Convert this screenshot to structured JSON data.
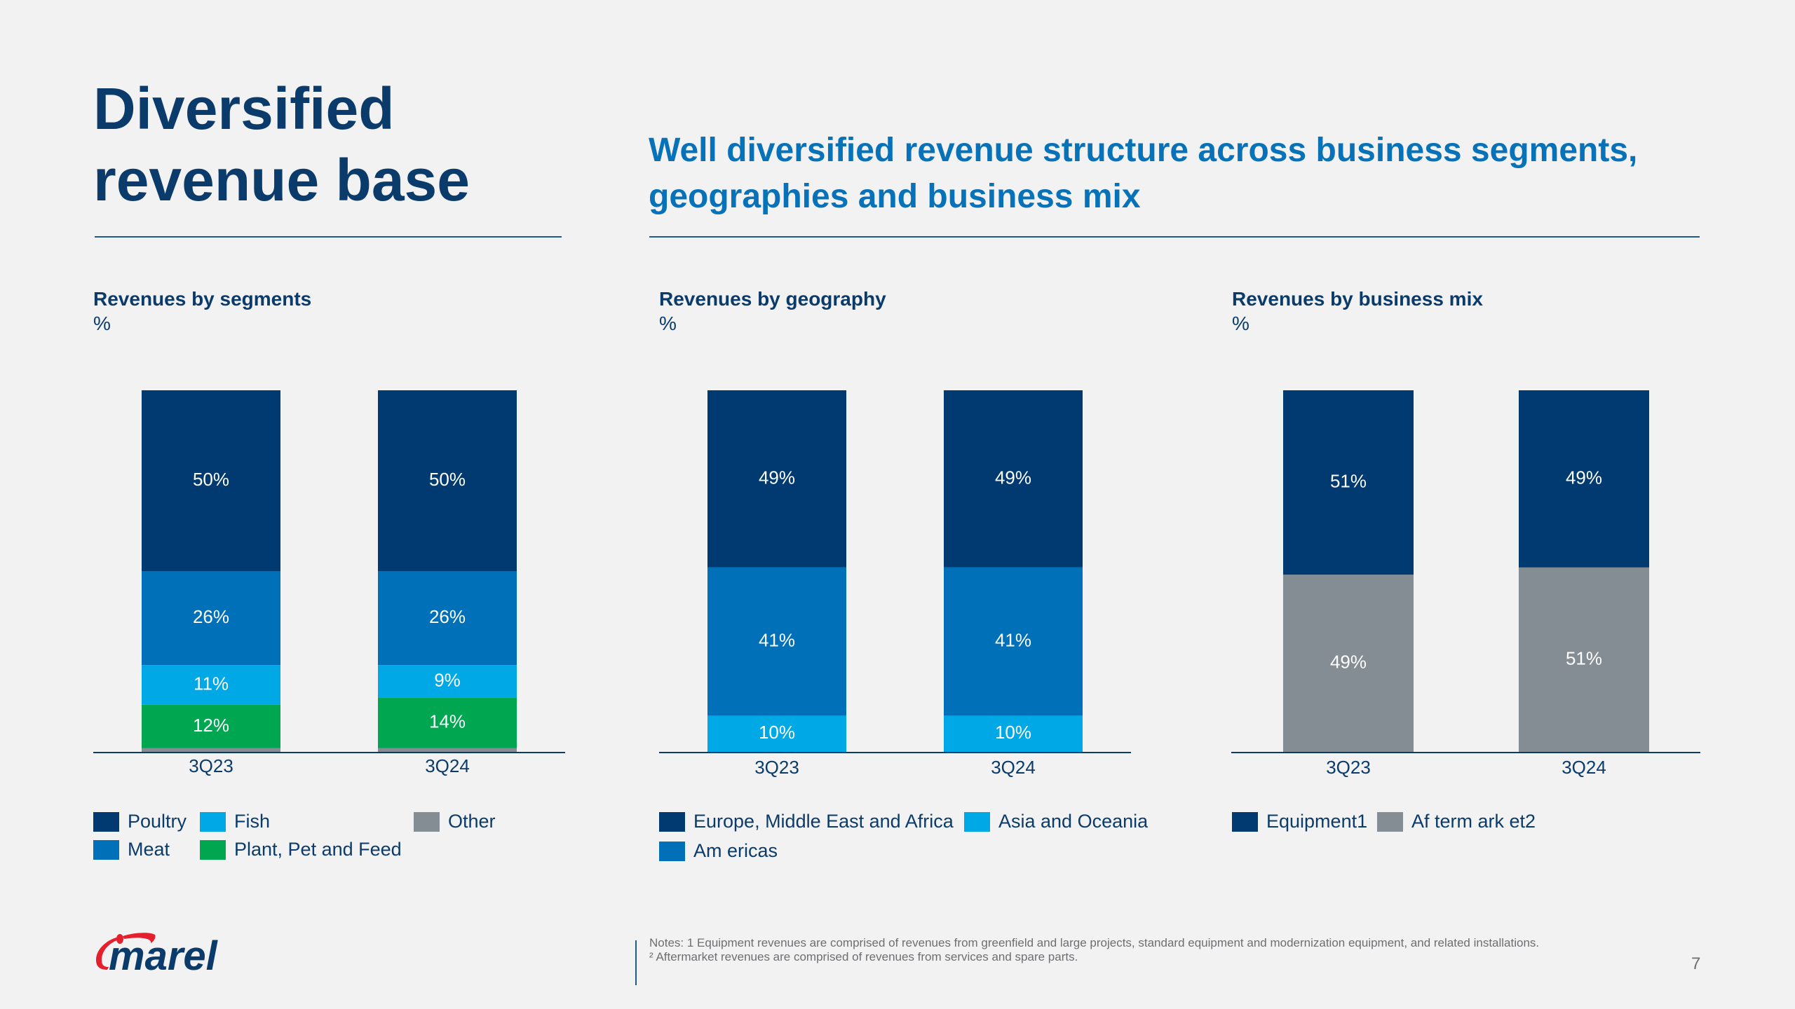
{
  "header": {
    "title_line1": "Diversified",
    "title_line2": "revenue base",
    "subtitle_line1": "Well diversified revenue structure across business segments,",
    "subtitle_line2": "geographies and business mix"
  },
  "colors": {
    "dark_navy": "#003a70",
    "blue": "#0070b8",
    "light_blue": "#00a9e5",
    "green": "#00a650",
    "gray": "#848d93",
    "title": "#0b3b6a",
    "subtitle": "#0872b9",
    "logo_red": "#e4202e"
  },
  "chart_data": [
    {
      "id": "segments",
      "type": "bar",
      "stacked": true,
      "title": "Revenues by segments",
      "unit": "%",
      "categories": [
        "3Q23",
        "3Q24"
      ],
      "ylim": [
        0,
        100
      ],
      "grid": false,
      "legend_position": "bottom",
      "series": [
        {
          "name": "Other",
          "color": "#848d93",
          "values": [
            1,
            1
          ],
          "labels": [
            "",
            ""
          ]
        },
        {
          "name": "Plant, Pet and Feed",
          "color": "#00a650",
          "values": [
            12,
            14
          ],
          "labels": [
            "12%",
            "14%"
          ]
        },
        {
          "name": "Fish",
          "color": "#00a9e5",
          "values": [
            11,
            9
          ],
          "labels": [
            "11%",
            "9%"
          ]
        },
        {
          "name": "Meat",
          "color": "#0070b8",
          "values": [
            26,
            26
          ],
          "labels": [
            "26%",
            "26%"
          ]
        },
        {
          "name": "Poultry",
          "color": "#003a70",
          "values": [
            50,
            50
          ],
          "labels": [
            "50%",
            "50%"
          ]
        }
      ],
      "legend": [
        {
          "name": "Poultry",
          "color": "#003a70"
        },
        {
          "name": "Fish",
          "color": "#00a9e5"
        },
        {
          "name": "Other",
          "color": "#848d93"
        },
        {
          "name": "Meat",
          "color": "#0070b8"
        },
        {
          "name": "Plant, Pet and Feed",
          "color": "#00a650"
        }
      ]
    },
    {
      "id": "geography",
      "type": "bar",
      "stacked": true,
      "title": "Revenues by geography",
      "unit": "%",
      "categories": [
        "3Q23",
        "3Q24"
      ],
      "ylim": [
        0,
        100
      ],
      "grid": false,
      "legend_position": "bottom",
      "series": [
        {
          "name": "Asia and Oceania",
          "color": "#00a9e5",
          "values": [
            10,
            10
          ],
          "labels": [
            "10%",
            "10%"
          ]
        },
        {
          "name": "Am ericas",
          "color": "#0070b8",
          "values": [
            41,
            41
          ],
          "labels": [
            "41%",
            "41%"
          ]
        },
        {
          "name": "Europe, Middle East and Africa",
          "color": "#003a70",
          "values": [
            49,
            49
          ],
          "labels": [
            "49%",
            "49%"
          ]
        }
      ],
      "legend": [
        {
          "name": "Europe, Middle East and Africa",
          "color": "#003a70"
        },
        {
          "name": "Asia and Oceania",
          "color": "#00a9e5"
        },
        {
          "name": "Am ericas",
          "color": "#0070b8"
        }
      ]
    },
    {
      "id": "business_mix",
      "type": "bar",
      "stacked": true,
      "title": "Revenues by business mix",
      "unit": "%",
      "categories": [
        "3Q23",
        "3Q24"
      ],
      "ylim": [
        0,
        100
      ],
      "grid": false,
      "legend_position": "bottom",
      "series": [
        {
          "name": "Af term ark et2",
          "color": "#848d93",
          "values": [
            49,
            51
          ],
          "labels": [
            "49%",
            "51%"
          ]
        },
        {
          "name": "Equipment1",
          "color": "#003a70",
          "values": [
            51,
            49
          ],
          "labels": [
            "51%",
            "49%"
          ]
        }
      ],
      "legend": [
        {
          "name": "Equipment1",
          "color": "#003a70"
        },
        {
          "name": "Af term ark et2",
          "color": "#848d93"
        }
      ]
    }
  ],
  "footer": {
    "logo_text": "marel",
    "notes_line1": "Notes: 1 Equipment revenues are comprised of revenues from greenfield and large projects, standard equipment and modernization equipment, and related installations.",
    "notes_line2": "² Aftermarket revenues are comprised of revenues from services and spare parts.",
    "page_number": "7"
  }
}
